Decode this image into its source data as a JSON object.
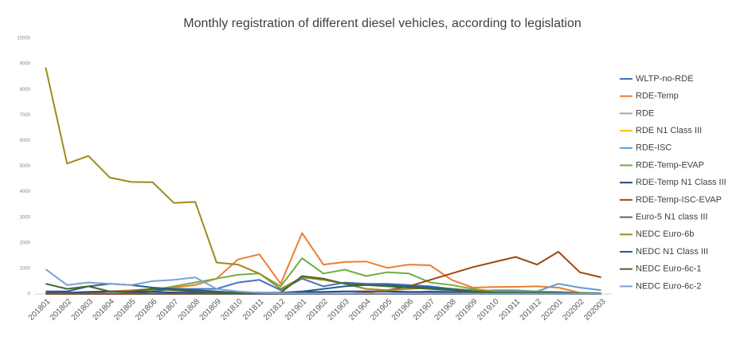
{
  "chart_data": {
    "type": "line",
    "title": "Monthly registration of different diesel vehicles, according to legislation",
    "categories": [
      "201801",
      "201802",
      "201803",
      "201804",
      "201805",
      "201806",
      "201807",
      "201808",
      "201809",
      "201810",
      "201811",
      "201812",
      "201901",
      "201902",
      "201903",
      "201904",
      "201905",
      "201906",
      "201907",
      "201908",
      "201909",
      "201910",
      "201911",
      "201912",
      "202001",
      "202002",
      "202003"
    ],
    "ylim": [
      0,
      10000
    ],
    "yticks": [
      0,
      1000,
      2000,
      3000,
      4000,
      5000,
      6000,
      7000,
      8000,
      9000,
      10000
    ],
    "grid": false,
    "legend": "right",
    "series": [
      {
        "name": "WLTP-no-RDE",
        "color": "#4472c4",
        "values": [
          0,
          0,
          0,
          0,
          0,
          100,
          200,
          200,
          200,
          450,
          550,
          150,
          600,
          300,
          450,
          400,
          400,
          350,
          300,
          200,
          100,
          50,
          100,
          100,
          50,
          20,
          10
        ]
      },
      {
        "name": "RDE-Temp",
        "color": "#ed7d31",
        "values": [
          0,
          0,
          50,
          100,
          150,
          200,
          250,
          350,
          600,
          1350,
          1550,
          400,
          2380,
          1150,
          1250,
          1270,
          1020,
          1150,
          1120,
          550,
          250,
          270,
          280,
          300,
          250,
          50,
          20
        ]
      },
      {
        "name": "RDE",
        "color": "#a5a5a5",
        "values": [
          0,
          0,
          0,
          0,
          0,
          0,
          0,
          0,
          0,
          0,
          0,
          0,
          0,
          0,
          0,
          0,
          0,
          0,
          0,
          0,
          0,
          0,
          0,
          0,
          0,
          0,
          0
        ]
      },
      {
        "name": "RDE N1 Class III",
        "color": "#ffc000",
        "values": [
          0,
          0,
          0,
          0,
          0,
          0,
          0,
          0,
          0,
          0,
          0,
          0,
          0,
          0,
          0,
          0,
          0,
          0,
          0,
          0,
          0,
          0,
          0,
          0,
          0,
          0,
          0
        ]
      },
      {
        "name": "RDE-ISC",
        "color": "#5b9bd5",
        "values": [
          0,
          0,
          0,
          0,
          0,
          0,
          0,
          0,
          0,
          0,
          0,
          0,
          0,
          0,
          0,
          0,
          20,
          50,
          100,
          100,
          100,
          150,
          150,
          100,
          400,
          250,
          150
        ]
      },
      {
        "name": "RDE-Temp-EVAP",
        "color": "#70ad47",
        "values": [
          0,
          0,
          0,
          0,
          50,
          150,
          300,
          450,
          600,
          750,
          800,
          300,
          1400,
          800,
          950,
          700,
          850,
          800,
          450,
          350,
          200,
          100,
          100,
          100,
          80,
          50,
          30
        ]
      },
      {
        "name": "RDE-Temp N1  Class III",
        "color": "#264478",
        "values": [
          50,
          50,
          80,
          100,
          80,
          80,
          60,
          50,
          50,
          50,
          50,
          30,
          80,
          80,
          100,
          100,
          100,
          80,
          80,
          60,
          50,
          40,
          40,
          40,
          30,
          20,
          10
        ]
      },
      {
        "name": "RDE-Temp-ISC-EVAP",
        "color": "#9e480e",
        "values": [
          0,
          0,
          0,
          0,
          0,
          0,
          0,
          0,
          0,
          0,
          0,
          0,
          0,
          0,
          0,
          50,
          150,
          300,
          550,
          800,
          1050,
          1250,
          1450,
          1150,
          1650,
          850,
          650
        ]
      },
      {
        "name": "Euro-5 N1 class III",
        "color": "#636363",
        "values": [
          20,
          20,
          20,
          20,
          20,
          10,
          10,
          10,
          10,
          0,
          0,
          0,
          0,
          0,
          0,
          0,
          0,
          0,
          0,
          0,
          0,
          0,
          0,
          0,
          0,
          0,
          0
        ]
      },
      {
        "name": "NEDC Euro-6b",
        "color": "#9e8a1e",
        "values": [
          8850,
          5100,
          5400,
          4550,
          4380,
          4370,
          3560,
          3600,
          1230,
          1150,
          800,
          200,
          650,
          550,
          400,
          200,
          150,
          200,
          250,
          200,
          150,
          100,
          80,
          60,
          50,
          40,
          30
        ]
      },
      {
        "name": "NEDC N1 Class III",
        "color": "#255e91",
        "values": [
          100,
          100,
          300,
          400,
          350,
          250,
          200,
          150,
          100,
          50,
          50,
          50,
          100,
          200,
          300,
          350,
          350,
          300,
          250,
          200,
          100,
          50,
          50,
          50,
          50,
          20,
          20
        ]
      },
      {
        "name": "NEDC Euro-6c-1",
        "color": "#43682b",
        "values": [
          400,
          200,
          300,
          100,
          100,
          200,
          150,
          100,
          50,
          50,
          50,
          50,
          700,
          600,
          400,
          350,
          300,
          250,
          200,
          150,
          50,
          50,
          50,
          50,
          20,
          10,
          10
        ]
      },
      {
        "name": "NEDC Euro-6c-2",
        "color": "#7f9fd9",
        "values": [
          970,
          350,
          450,
          400,
          350,
          500,
          550,
          650,
          200,
          100,
          50,
          30,
          20,
          20,
          20,
          20,
          20,
          20,
          20,
          20,
          10,
          10,
          10,
          10,
          10,
          10,
          10
        ]
      }
    ]
  }
}
